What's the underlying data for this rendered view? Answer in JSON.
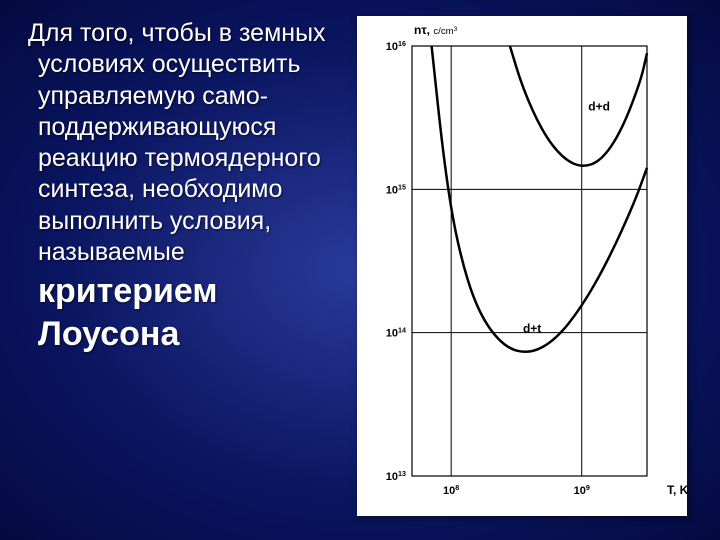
{
  "text": {
    "body": "Для того, чтобы в земных условиях осуществить управляемую само-поддерживающуюся реакцию термоядерного синтеза, необходимо выполнить условия, называемые",
    "criterion_l1": "критерием",
    "criterion_l2": "Лоусона"
  },
  "chart": {
    "type": "line",
    "background_color": "#ffffff",
    "axis_color": "#000000",
    "grid_color": "#000000",
    "ylabel_prefix": "nτ, ",
    "ylabel_unit": "c/cm",
    "ylabel_unit_sup": "3",
    "xlabel": "T, K",
    "label_fontsize": 12,
    "tick_fontsize": 11,
    "line_width": 2.5,
    "grid_width": 1,
    "y_log": true,
    "x_log": true,
    "ylim_exp": [
      13,
      16
    ],
    "xlim_exp": [
      7.7,
      9.5
    ],
    "yticks": [
      {
        "exp": 13,
        "label_base": "10",
        "label_sup": "13"
      },
      {
        "exp": 14,
        "label_base": "10",
        "label_sup": "14"
      },
      {
        "exp": 15,
        "label_base": "10",
        "label_sup": "15"
      },
      {
        "exp": 16,
        "label_base": "10",
        "label_sup": "16"
      }
    ],
    "xticks": [
      {
        "exp": 8,
        "label_base": "10",
        "label_sup": "8"
      },
      {
        "exp": 9,
        "label_base": "10",
        "label_sup": "9"
      }
    ],
    "series": [
      {
        "name": "d+t",
        "label": "d+t",
        "color": "#000000",
        "label_pos_exp": {
          "x": 8.55,
          "y": 14.0
        },
        "points_exp": [
          {
            "x": 7.85,
            "y": 16.0
          },
          {
            "x": 7.95,
            "y": 15.15
          },
          {
            "x": 8.05,
            "y": 14.6
          },
          {
            "x": 8.2,
            "y": 14.15
          },
          {
            "x": 8.4,
            "y": 13.9
          },
          {
            "x": 8.6,
            "y": 13.85
          },
          {
            "x": 8.8,
            "y": 13.95
          },
          {
            "x": 9.0,
            "y": 14.18
          },
          {
            "x": 9.2,
            "y": 14.5
          },
          {
            "x": 9.4,
            "y": 14.9
          },
          {
            "x": 9.5,
            "y": 15.15
          }
        ]
      },
      {
        "name": "d+d",
        "label": "d+d",
        "color": "#000000",
        "label_pos_exp": {
          "x": 9.05,
          "y": 15.55
        },
        "points_exp": [
          {
            "x": 8.45,
            "y": 16.0
          },
          {
            "x": 8.55,
            "y": 15.7
          },
          {
            "x": 8.7,
            "y": 15.4
          },
          {
            "x": 8.85,
            "y": 15.22
          },
          {
            "x": 9.0,
            "y": 15.15
          },
          {
            "x": 9.15,
            "y": 15.2
          },
          {
            "x": 9.3,
            "y": 15.4
          },
          {
            "x": 9.45,
            "y": 15.75
          },
          {
            "x": 9.5,
            "y": 15.95
          }
        ]
      }
    ]
  }
}
